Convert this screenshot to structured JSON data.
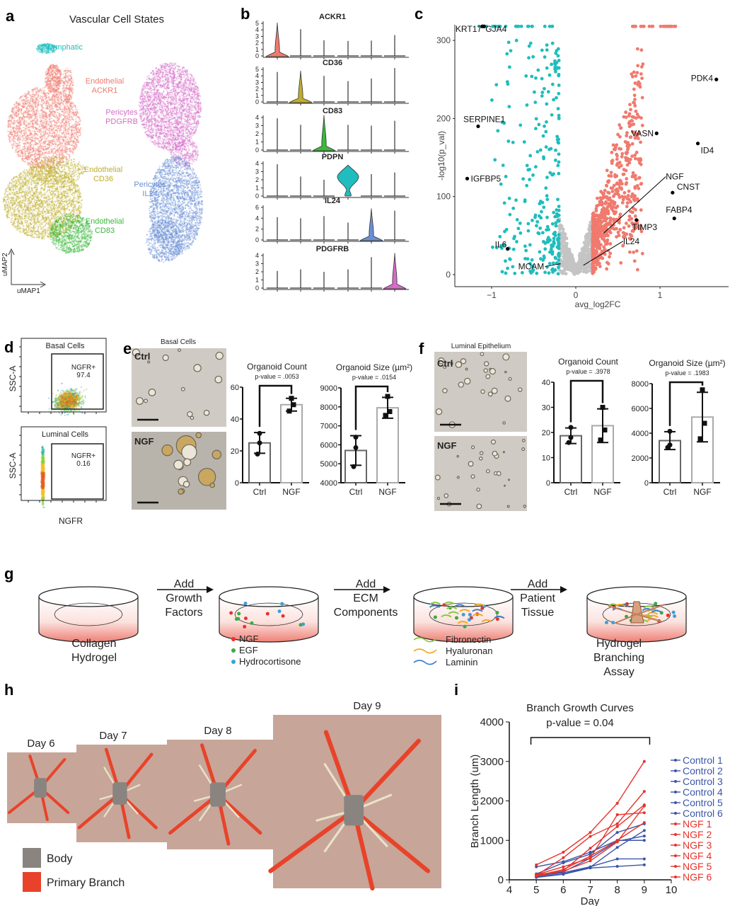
{
  "panel_labels": {
    "a": "a",
    "b": "b",
    "c": "c",
    "d": "d",
    "e": "e",
    "f": "f",
    "g": "g",
    "h": "h",
    "i": "i"
  },
  "umap": {
    "title": "Vascular Cell States",
    "axis_x": "uMAP1",
    "axis_y": "uMAP2",
    "clusters": [
      {
        "line1": "Lymphatic",
        "line2": "",
        "color": "#1fbdbd"
      },
      {
        "line1": "Endothelial",
        "line2": "ACKR1",
        "color": "#f07a6e"
      },
      {
        "line1": "Pericytes",
        "line2": "PDGFRB",
        "color": "#d56cc8"
      },
      {
        "line1": "Endothelial",
        "line2": "CD36",
        "color": "#bfae2c"
      },
      {
        "line1": "Pericytes",
        "line2": "IL24",
        "color": "#6a8fd6"
      },
      {
        "line1": "Endothelial",
        "line2": "CD83",
        "color": "#3cb83c"
      }
    ]
  },
  "flow": {
    "y_label": "SSC-A",
    "x_label": "NGFR",
    "plots": [
      {
        "title": "Basal Cells",
        "gate_label": "NGFR+",
        "gate_value": "97.4"
      },
      {
        "title": "Luminal Cells",
        "gate_label": "NGFR+",
        "gate_value": "0.16"
      }
    ]
  },
  "panel_e": {
    "title": "Basal Cells",
    "image_labels": [
      "Ctrl",
      "NGF"
    ]
  },
  "panel_f": {
    "title": "Luminal Epithelium",
    "image_labels": [
      "Ctrl",
      "NGF"
    ]
  },
  "diagram": {
    "steps": [
      {
        "label_lines": [
          "Collagen",
          "Hydrogel"
        ]
      },
      {
        "label_lines": []
      },
      {
        "label_lines": []
      },
      {
        "label_lines": [
          "Hydrogel",
          "Branching",
          "Assay"
        ]
      }
    ],
    "arrows": [
      {
        "lines": [
          "Add",
          "Growth",
          "Factors"
        ]
      },
      {
        "lines": [
          "Add",
          "ECM",
          "Components"
        ]
      },
      {
        "lines": [
          "Add",
          "Patient",
          "Tissue"
        ]
      }
    ],
    "factor_legend": [
      {
        "label": "NGF",
        "color": "#e8322a"
      },
      {
        "label": "EGF",
        "color": "#3cab3c"
      },
      {
        "label": "Hydrocortisone",
        "color": "#3aa0dc"
      }
    ],
    "ecm_legend": [
      {
        "label": "Fibronectin",
        "color": "#8dc63f"
      },
      {
        "label": "Hyaluronan",
        "color": "#f5a623"
      },
      {
        "label": "Laminin",
        "color": "#3a7fd0"
      }
    ]
  },
  "branching": {
    "days": [
      "Day 6",
      "Day 7",
      "Day 8",
      "Day 9"
    ],
    "legend": [
      {
        "label": "Body",
        "color": "#8a8480"
      },
      {
        "label": "Primary Branch",
        "color": "#e8432a"
      }
    ]
  },
  "chart_data": [
    {
      "id": "b",
      "type": "violin",
      "genes": [
        {
          "name": "ACKR1",
          "ticks": [
            0,
            1,
            2,
            3,
            4,
            5
          ],
          "max_by_cluster": [
            5.1,
            4.1,
            2.4,
            2.3,
            2.35,
            3.2
          ],
          "enriched_cluster": 0,
          "color": "#f07a6e"
        },
        {
          "name": "CD36",
          "ticks": [
            0,
            1,
            2,
            3,
            4,
            5
          ],
          "max_by_cluster": [
            4.6,
            4.8,
            4.0,
            3.2,
            3.6,
            5.2
          ],
          "enriched_cluster": 1,
          "color": "#bfae2c"
        },
        {
          "name": "CD83",
          "ticks": [
            0,
            1,
            2,
            3,
            4
          ],
          "max_by_cluster": [
            3.9,
            3.1,
            4.3,
            3.1,
            3.0,
            3.6
          ],
          "enriched_cluster": 2,
          "color": "#3cb83c"
        },
        {
          "name": "PDPN",
          "ticks": [
            0,
            1,
            2,
            3,
            4
          ],
          "max_by_cluster": [
            3.9,
            2.4,
            2.0,
            3.8,
            2.7,
            2.9
          ],
          "enriched_cluster": 3,
          "color": "#1fbdbd"
        },
        {
          "name": "IL24",
          "ticks": [
            0,
            2,
            4,
            6
          ],
          "max_by_cluster": [
            4.2,
            4.0,
            4.4,
            3.2,
            5.8,
            5.4
          ],
          "enriched_cluster": 4,
          "color": "#6a8fd6"
        },
        {
          "name": "PDGFRB",
          "ticks": [
            0,
            1,
            2,
            3,
            4
          ],
          "max_by_cluster": [
            2.1,
            2.3,
            2.0,
            2.3,
            3.8,
            4.3
          ],
          "enriched_cluster": 5,
          "color": "#d56cc8"
        }
      ]
    },
    {
      "id": "c",
      "type": "scatter",
      "xlabel": "avg_log2FC",
      "ylabel": "-log10(p_val)",
      "xlim": [
        -1.45,
        1.75
      ],
      "ylim": [
        -10,
        320
      ],
      "xticks": [
        -1,
        0,
        1
      ],
      "yticks": [
        0,
        100,
        200,
        300
      ],
      "colors": {
        "down": "#1fbdbd",
        "up": "#f07a6e",
        "ns": "#c4c4c4",
        "labeled": "#000000"
      },
      "labeled_genes": [
        {
          "gene": "KRT17",
          "x": -1.11,
          "y": 318
        },
        {
          "gene": "GJA4",
          "x": -1.09,
          "y": 318
        },
        {
          "gene": "SERPINE1",
          "x": -1.16,
          "y": 190
        },
        {
          "gene": "IGFBP5",
          "x": -1.29,
          "y": 123
        },
        {
          "gene": "IL6",
          "x": -0.81,
          "y": 33
        },
        {
          "gene": "MCAM",
          "x": -0.18,
          "y": 14
        },
        {
          "gene": "IL24",
          "x": 0.09,
          "y": 12
        },
        {
          "gene": "NGF",
          "x": 0.33,
          "y": 53
        },
        {
          "gene": "TIMP3",
          "x": 0.72,
          "y": 70
        },
        {
          "gene": "VASN",
          "x": 0.96,
          "y": 181
        },
        {
          "gene": "CNST",
          "x": 1.15,
          "y": 105
        },
        {
          "gene": "FABP4",
          "x": 1.17,
          "y": 72
        },
        {
          "gene": "ID4",
          "x": 1.45,
          "y": 168
        },
        {
          "gene": "PDK4",
          "x": 1.67,
          "y": 250
        }
      ]
    },
    {
      "id": "e1",
      "type": "bar",
      "title": "Organoid Count",
      "pvalue": "p-value = .0053",
      "categories": [
        "Ctrl",
        "NGF"
      ],
      "values": [
        25,
        49
      ],
      "points": [
        [
          31,
          25,
          18
        ],
        [
          53,
          49,
          45
        ]
      ],
      "sd": [
        6.5,
        4
      ],
      "ylim": [
        0,
        60
      ],
      "yticks": [
        0,
        20,
        40,
        60
      ]
    },
    {
      "id": "e2",
      "type": "bar",
      "title": "Organoid Size (µm²)",
      "pvalue": "p-value = .0154",
      "categories": [
        "Ctrl",
        "NGF"
      ],
      "values": [
        5700,
        7950
      ],
      "points": [
        [
          6400,
          5850,
          4850
        ],
        [
          8550,
          7750,
          7550
        ]
      ],
      "sd": [
        780,
        550
      ],
      "ylim": [
        4000,
        9000
      ],
      "yticks": [
        4000,
        5000,
        6000,
        7000,
        8000,
        9000
      ]
    },
    {
      "id": "f1",
      "type": "bar",
      "title": "Organoid Count",
      "pvalue": "p-value = .3978",
      "categories": [
        "Ctrl",
        "NGF"
      ],
      "values": [
        18.7,
        22.7
      ],
      "points": [
        [
          22,
          18,
          16
        ],
        [
          30,
          21,
          17
        ]
      ],
      "sd": [
        3.1,
        6.7
      ],
      "ylim": [
        0,
        40
      ],
      "yticks": [
        0,
        10,
        20,
        30,
        40
      ]
    },
    {
      "id": "f2",
      "type": "bar",
      "title": "Organoid Size (µm²)",
      "pvalue": "p-value = .1983",
      "categories": [
        "Ctrl",
        "NGF"
      ],
      "values": [
        3400,
        5300
      ],
      "points": [
        [
          4150,
          3050,
          2850
        ],
        [
          7500,
          4800,
          3550
        ]
      ],
      "sd": [
        720,
        2000
      ],
      "ylim": [
        0,
        8000
      ],
      "yticks": [
        0,
        2000,
        4000,
        6000,
        8000
      ]
    },
    {
      "id": "i",
      "type": "line",
      "title": "Branch Growth Curves",
      "subtitle": "p-value = 0.04",
      "xlabel": "Day",
      "ylabel": "Branch Length (um)",
      "xlim": [
        4,
        10
      ],
      "ylim": [
        0,
        4000
      ],
      "xticks": [
        4,
        5,
        6,
        7,
        8,
        9,
        10
      ],
      "yticks": [
        0,
        1000,
        2000,
        3000,
        4000
      ],
      "legend_position": "right",
      "x": [
        5,
        6,
        7,
        8,
        9
      ],
      "series": [
        {
          "name": "Control 1",
          "color": "#3a55a8",
          "values": [
            80,
            150,
            320,
            820,
            1250
          ]
        },
        {
          "name": "Control 2",
          "color": "#3a55a8",
          "values": [
            100,
            180,
            330,
            530,
            530
          ]
        },
        {
          "name": "Control 3",
          "color": "#3a55a8",
          "values": [
            60,
            140,
            300,
            340,
            380
          ]
        },
        {
          "name": "Control 4",
          "color": "#3a55a8",
          "values": [
            330,
            460,
            700,
            1000,
            1000
          ]
        },
        {
          "name": "Control 5",
          "color": "#3a55a8",
          "values": [
            120,
            200,
            550,
            980,
            1110
          ]
        },
        {
          "name": "Control 6",
          "color": "#3a55a8",
          "values": [
            150,
            430,
            650,
            1200,
            1420
          ]
        },
        {
          "name": "NGF 1",
          "color": "#e8322a",
          "values": [
            130,
            220,
            480,
            960,
            1870
          ]
        },
        {
          "name": "NGF 2",
          "color": "#e8322a",
          "values": [
            380,
            700,
            1200,
            1940,
            3000
          ]
        },
        {
          "name": "NGF 3",
          "color": "#e8322a",
          "values": [
            110,
            560,
            1100,
            1420,
            2240
          ]
        },
        {
          "name": "NGF 4",
          "color": "#e8322a",
          "values": [
            90,
            230,
            800,
            1350,
            1900
          ]
        },
        {
          "name": "NGF 5",
          "color": "#e8322a",
          "values": [
            100,
            260,
            600,
            1000,
            1450
          ]
        },
        {
          "name": "NGF 6",
          "color": "#e8322a",
          "values": [
            130,
            330,
            550,
            1650,
            1700
          ]
        }
      ]
    }
  ]
}
